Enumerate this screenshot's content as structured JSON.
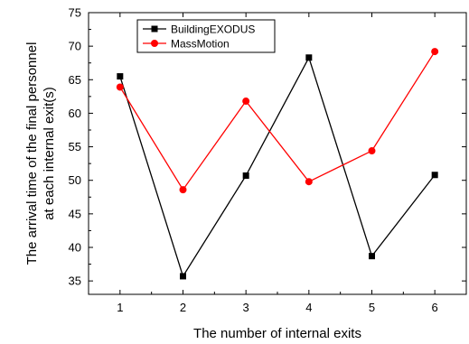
{
  "chart_data": {
    "type": "line",
    "title": "",
    "xlabel": "The number of internal exits",
    "ylabel": "The arrival time of the final personnel at each internal exit(s)",
    "ylabel_lines": [
      "The arrival time of the final personnel",
      "at each internal exit(s)"
    ],
    "x": [
      1,
      2,
      3,
      4,
      5,
      6
    ],
    "x_ticks": [
      "1",
      "2",
      "3",
      "4",
      "5",
      "6"
    ],
    "xlim": [
      0.5,
      6.5
    ],
    "ylim": [
      33,
      75
    ],
    "y_ticks": [
      35,
      40,
      45,
      50,
      55,
      60,
      65,
      70,
      75
    ],
    "grid": false,
    "legend": "top-left",
    "series": [
      {
        "name": "BuildingEXODUS",
        "color": "#000000",
        "marker": "square",
        "values": [
          65.5,
          35.7,
          50.7,
          68.3,
          38.7,
          50.8
        ]
      },
      {
        "name": "MassMotion",
        "color": "#ff0000",
        "marker": "circle",
        "values": [
          63.9,
          48.6,
          61.8,
          49.8,
          54.4,
          69.2
        ]
      }
    ]
  }
}
